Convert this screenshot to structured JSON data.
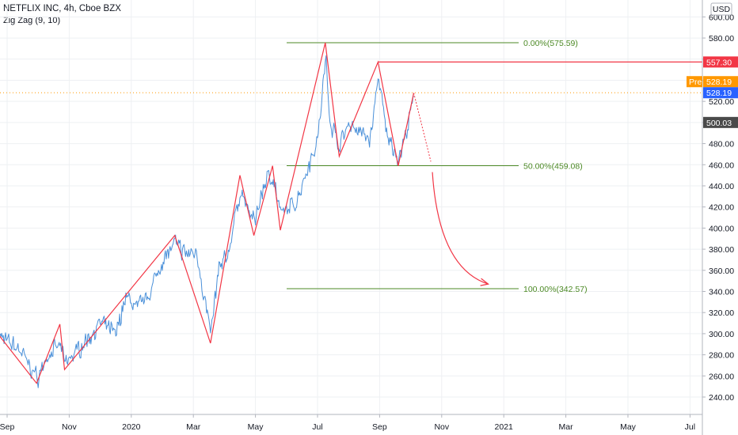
{
  "header": {
    "title": "NETFLIX INC, 4h, Cboe BZX",
    "indicator": "Zig Zag (9, 10)",
    "currency": "USD"
  },
  "colors": {
    "price": "#4a90d9",
    "zigzag": "#f23645",
    "fib": "#4d8a26",
    "resistance": "#f23645",
    "last_tag": "#2962ff",
    "pre_tag": "#ff9800",
    "dark_tag": "#4a4a4a",
    "grid": "#eef0f3"
  },
  "chart_data": {
    "type": "line",
    "y_axis": {
      "min": 230,
      "max": 610,
      "ticks": [
        240,
        260,
        280,
        300,
        320,
        340,
        360,
        380,
        400,
        420,
        440,
        460,
        480,
        500,
        520,
        540,
        560,
        580,
        600
      ],
      "position": "right"
    },
    "x_axis": {
      "labels": [
        "Sep",
        "Nov",
        "2020",
        "Mar",
        "May",
        "Jul",
        "Sep",
        "Nov",
        "2021",
        "Mar",
        "May",
        "Jul"
      ],
      "months": [
        0,
        2,
        4,
        6,
        8,
        10,
        12,
        14,
        16,
        18,
        20,
        22
      ]
    },
    "zigzag": [
      {
        "m": -0.3,
        "v": 300
      },
      {
        "m": 0.95,
        "v": 253
      },
      {
        "m": 1.7,
        "v": 309
      },
      {
        "m": 1.85,
        "v": 266
      },
      {
        "m": 5.4,
        "v": 393
      },
      {
        "m": 6.55,
        "v": 291
      },
      {
        "m": 7.5,
        "v": 450
      },
      {
        "m": 7.95,
        "v": 393
      },
      {
        "m": 8.55,
        "v": 459
      },
      {
        "m": 8.8,
        "v": 398
      },
      {
        "m": 10.25,
        "v": 575.59
      },
      {
        "m": 10.7,
        "v": 468
      },
      {
        "m": 11.95,
        "v": 557.3
      },
      {
        "m": 12.6,
        "v": 459
      },
      {
        "m": 13.1,
        "v": 528
      }
    ],
    "price_anchors": [
      {
        "m": -0.3,
        "v": 298
      },
      {
        "m": 0.4,
        "v": 285
      },
      {
        "m": 0.95,
        "v": 258
      },
      {
        "m": 1.3,
        "v": 278
      },
      {
        "m": 1.7,
        "v": 290
      },
      {
        "m": 1.85,
        "v": 272
      },
      {
        "m": 2.5,
        "v": 292
      },
      {
        "m": 3.0,
        "v": 310
      },
      {
        "m": 3.5,
        "v": 300
      },
      {
        "m": 3.8,
        "v": 335
      },
      {
        "m": 4.2,
        "v": 325
      },
      {
        "m": 4.6,
        "v": 340
      },
      {
        "m": 5.0,
        "v": 370
      },
      {
        "m": 5.4,
        "v": 385
      },
      {
        "m": 5.8,
        "v": 375
      },
      {
        "m": 6.1,
        "v": 378
      },
      {
        "m": 6.3,
        "v": 340
      },
      {
        "m": 6.55,
        "v": 300
      },
      {
        "m": 6.8,
        "v": 360
      },
      {
        "m": 7.1,
        "v": 375
      },
      {
        "m": 7.5,
        "v": 435
      },
      {
        "m": 7.95,
        "v": 405
      },
      {
        "m": 8.3,
        "v": 445
      },
      {
        "m": 8.55,
        "v": 450
      },
      {
        "m": 8.8,
        "v": 412
      },
      {
        "m": 9.3,
        "v": 425
      },
      {
        "m": 9.7,
        "v": 460
      },
      {
        "m": 10.0,
        "v": 485
      },
      {
        "m": 10.25,
        "v": 560
      },
      {
        "m": 10.4,
        "v": 500
      },
      {
        "m": 10.7,
        "v": 478
      },
      {
        "m": 11.0,
        "v": 500
      },
      {
        "m": 11.4,
        "v": 490
      },
      {
        "m": 11.7,
        "v": 485
      },
      {
        "m": 11.95,
        "v": 545
      },
      {
        "m": 12.2,
        "v": 490
      },
      {
        "m": 12.6,
        "v": 465
      },
      {
        "m": 12.85,
        "v": 490
      },
      {
        "m": 13.1,
        "v": 525
      }
    ],
    "fib_levels": [
      {
        "label": "0.00%(575.59)",
        "value": 575.59
      },
      {
        "label": "50.00%(459.08)",
        "value": 459.08
      },
      {
        "label": "100.00%(342.57)",
        "value": 342.57
      }
    ],
    "resistance": {
      "value": 557.3,
      "label": "557.30"
    },
    "last_price": {
      "value": 528.19,
      "label": "528.19"
    },
    "pre_market": {
      "prefix": "Pre",
      "value": 528.19,
      "label": "528.19"
    },
    "level_500": {
      "value": 500.03,
      "label": "500.03"
    },
    "projection": {
      "from": {
        "m": 13.1,
        "v": 528
      },
      "to": {
        "m": 13.65,
        "v": 463
      }
    },
    "forecast_arrow": {
      "from": {
        "m": 13.7,
        "v": 453
      },
      "to": {
        "m": 15.5,
        "v": 347
      }
    }
  }
}
